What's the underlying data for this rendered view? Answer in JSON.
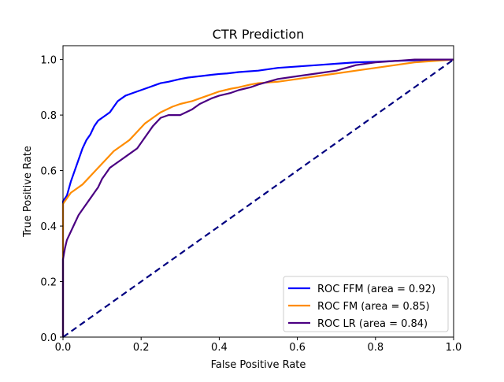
{
  "chart_data": {
    "type": "line",
    "title": "CTR Prediction",
    "xlabel": "False Positive Rate",
    "ylabel": "True Positive Rate",
    "xlim": [
      0.0,
      1.0
    ],
    "ylim": [
      0.0,
      1.05
    ],
    "xticks": [
      "0.0",
      "0.2",
      "0.4",
      "0.6",
      "0.8",
      "1.0"
    ],
    "yticks": [
      "0.0",
      "0.2",
      "0.4",
      "0.6",
      "0.8",
      "1.0"
    ],
    "grid": false,
    "legend_position": "lower right",
    "series": [
      {
        "name": "ROC FFM (area = 0.92)",
        "color": "#0000ff",
        "style": "solid",
        "x": [
          0,
          0,
          0.01,
          0.02,
          0.03,
          0.04,
          0.05,
          0.06,
          0.07,
          0.08,
          0.09,
          0.1,
          0.11,
          0.12,
          0.13,
          0.14,
          0.15,
          0.16,
          0.18,
          0.2,
          0.22,
          0.24,
          0.25,
          0.27,
          0.3,
          0.32,
          0.35,
          0.38,
          0.4,
          0.42,
          0.45,
          0.5,
          0.55,
          0.6,
          0.65,
          0.7,
          0.75,
          0.8,
          0.85,
          0.9,
          0.95,
          1.0
        ],
        "y": [
          0,
          0.49,
          0.51,
          0.56,
          0.6,
          0.64,
          0.68,
          0.71,
          0.73,
          0.76,
          0.78,
          0.79,
          0.8,
          0.81,
          0.83,
          0.85,
          0.86,
          0.87,
          0.88,
          0.89,
          0.9,
          0.91,
          0.915,
          0.92,
          0.93,
          0.935,
          0.94,
          0.945,
          0.948,
          0.95,
          0.955,
          0.96,
          0.97,
          0.975,
          0.98,
          0.985,
          0.99,
          0.992,
          0.995,
          0.997,
          0.999,
          1.0
        ]
      },
      {
        "name": "ROC FM (area = 0.85)",
        "color": "#ff8c00",
        "style": "solid",
        "x": [
          0,
          0,
          0.01,
          0.02,
          0.03,
          0.05,
          0.07,
          0.09,
          0.11,
          0.13,
          0.15,
          0.17,
          0.19,
          0.21,
          0.23,
          0.25,
          0.28,
          0.3,
          0.33,
          0.35,
          0.38,
          0.4,
          0.43,
          0.45,
          0.48,
          0.5,
          0.55,
          0.6,
          0.65,
          0.7,
          0.75,
          0.8,
          0.85,
          0.9,
          0.95,
          1.0
        ],
        "y": [
          0,
          0.48,
          0.5,
          0.52,
          0.53,
          0.55,
          0.58,
          0.61,
          0.64,
          0.67,
          0.69,
          0.71,
          0.74,
          0.77,
          0.79,
          0.81,
          0.83,
          0.84,
          0.85,
          0.86,
          0.875,
          0.885,
          0.895,
          0.9,
          0.91,
          0.915,
          0.92,
          0.93,
          0.94,
          0.95,
          0.96,
          0.97,
          0.98,
          0.99,
          0.995,
          1.0
        ]
      },
      {
        "name": "ROC LR (area = 0.84)",
        "color": "#4b0082",
        "style": "solid",
        "x": [
          0,
          0,
          0.005,
          0.01,
          0.02,
          0.03,
          0.04,
          0.05,
          0.06,
          0.07,
          0.08,
          0.09,
          0.1,
          0.11,
          0.12,
          0.13,
          0.14,
          0.15,
          0.17,
          0.19,
          0.21,
          0.23,
          0.25,
          0.27,
          0.3,
          0.33,
          0.35,
          0.38,
          0.4,
          0.43,
          0.45,
          0.48,
          0.5,
          0.55,
          0.6,
          0.65,
          0.7,
          0.75,
          0.8,
          0.85,
          0.9,
          0.95,
          1.0
        ],
        "y": [
          0,
          0.28,
          0.32,
          0.35,
          0.38,
          0.41,
          0.44,
          0.46,
          0.48,
          0.5,
          0.52,
          0.54,
          0.57,
          0.59,
          0.61,
          0.62,
          0.63,
          0.64,
          0.66,
          0.68,
          0.72,
          0.76,
          0.79,
          0.8,
          0.8,
          0.82,
          0.84,
          0.86,
          0.87,
          0.88,
          0.89,
          0.9,
          0.91,
          0.93,
          0.94,
          0.95,
          0.96,
          0.98,
          0.99,
          0.995,
          1.0,
          1.0,
          1.0
        ]
      },
      {
        "name": "",
        "color": "#000080",
        "style": "dashed",
        "x": [
          0,
          1
        ],
        "y": [
          0,
          1
        ]
      }
    ]
  }
}
